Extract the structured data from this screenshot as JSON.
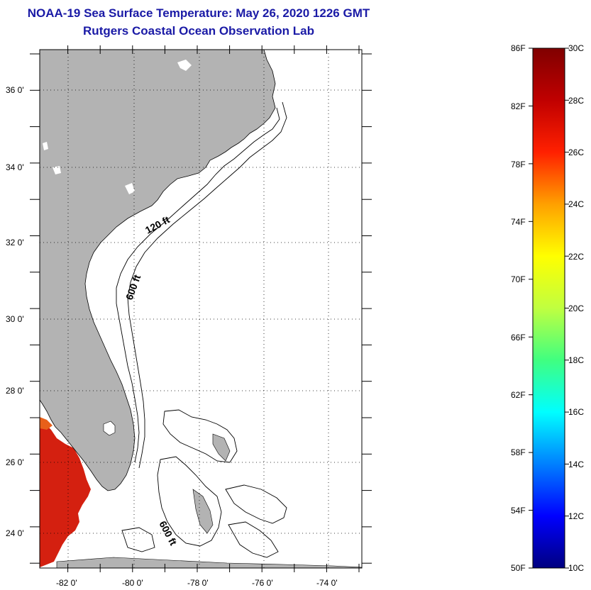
{
  "title_line1": "NOAA-19 Sea Surface Temperature:  May 26, 2020 1226 GMT",
  "title_line2": "Rutgers Coastal Ocean Observation Lab",
  "map": {
    "lon_ticks": [
      "-82 0'",
      "-80 0'",
      "-78 0'",
      "-76 0'",
      "-74 0'"
    ],
    "lat_ticks": [
      "36 0'",
      "34 0'",
      "32 0'",
      "30 0'",
      "28 0'",
      "26 0'",
      "24 0'"
    ],
    "contour_labels": {
      "shelf_120": "120 ft",
      "shelf_600": "600 ft",
      "bahamas_600": "600 ft"
    },
    "land_color": "#b3b3b3",
    "sst_color": "#d42010"
  },
  "colorbar": {
    "f_labels": [
      "86F",
      "82F",
      "78F",
      "74F",
      "70F",
      "66F",
      "62F",
      "58F",
      "54F",
      "50F"
    ],
    "c_labels": [
      "30C",
      "28C",
      "26C",
      "24C",
      "22C",
      "20C",
      "18C",
      "16C",
      "14C",
      "12C",
      "10C"
    ],
    "colors": [
      "#000080",
      "#0000ff",
      "#0080ff",
      "#00ffff",
      "#40ff80",
      "#c0ff40",
      "#ffff00",
      "#ffa000",
      "#ff2000",
      "#c00000",
      "#800000"
    ]
  }
}
